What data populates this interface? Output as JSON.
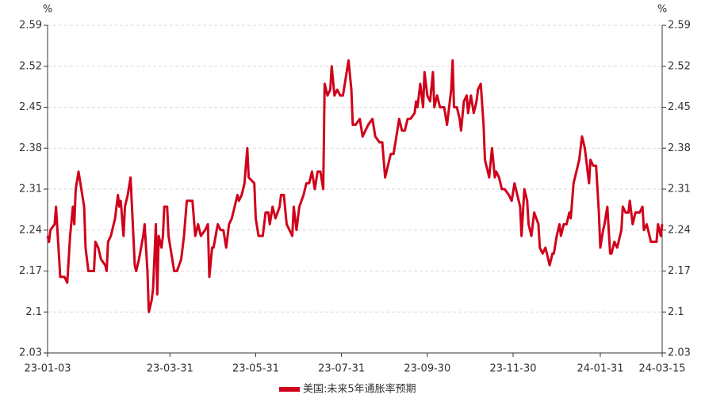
{
  "chart_data": {
    "type": "line",
    "y_unit": "%",
    "y2_unit": "%",
    "x": [
      "2023-01-03",
      "2023-01-04",
      "2023-01-05",
      "2023-01-08",
      "2023-01-09",
      "2023-01-10",
      "2023-01-12",
      "2023-01-15",
      "2023-01-17",
      "2023-01-19",
      "2023-01-21",
      "2023-01-22",
      "2023-01-23",
      "2023-01-25",
      "2023-01-27",
      "2023-01-29",
      "2023-01-30",
      "2023-01-31",
      "2023-02-01",
      "2023-02-05",
      "2023-02-06",
      "2023-02-08",
      "2023-02-10",
      "2023-02-13",
      "2023-02-14",
      "2023-02-15",
      "2023-02-17",
      "2023-02-20",
      "2023-02-22",
      "2023-02-23",
      "2023-02-24",
      "2023-02-26",
      "2023-02-27",
      "2023-03-01",
      "2023-03-03",
      "2023-03-04",
      "2023-03-06",
      "2023-03-07",
      "2023-03-09",
      "2023-03-12",
      "2023-03-13",
      "2023-03-15",
      "2023-03-16",
      "2023-03-18",
      "2023-03-19",
      "2023-03-21",
      "2023-03-22",
      "2023-03-23",
      "2023-03-25",
      "2023-03-26",
      "2023-03-27",
      "2023-03-29",
      "2023-03-30",
      "2023-04-01",
      "2023-04-03",
      "2023-04-05",
      "2023-04-08",
      "2023-04-10",
      "2023-04-12",
      "2023-04-16",
      "2023-04-18",
      "2023-04-20",
      "2023-04-22",
      "2023-04-25",
      "2023-04-27",
      "2023-04-28",
      "2023-04-30",
      "2023-05-01",
      "2023-05-04",
      "2023-05-06",
      "2023-05-08",
      "2023-05-10",
      "2023-05-12",
      "2023-05-14",
      "2023-05-16",
      "2023-05-18",
      "2023-05-19",
      "2023-05-21",
      "2023-05-23",
      "2023-05-25",
      "2023-05-26",
      "2023-05-30",
      "2023-05-31",
      "2023-06-02",
      "2023-06-05",
      "2023-06-07",
      "2023-06-09",
      "2023-06-10",
      "2023-06-12",
      "2023-06-14",
      "2023-06-17",
      "2023-06-18",
      "2023-06-20",
      "2023-06-22",
      "2023-06-24",
      "2023-06-26",
      "2023-06-27",
      "2023-06-29",
      "2023-07-01",
      "2023-07-04",
      "2023-07-06",
      "2023-07-08",
      "2023-07-10",
      "2023-07-12",
      "2023-07-14",
      "2023-07-16",
      "2023-07-18",
      "2023-07-19",
      "2023-07-21",
      "2023-07-23",
      "2023-07-24",
      "2023-07-26",
      "2023-07-28",
      "2023-07-30",
      "2023-08-01",
      "2023-08-03",
      "2023-08-05",
      "2023-08-07",
      "2023-08-08",
      "2023-08-10",
      "2023-08-13",
      "2023-08-15",
      "2023-08-17",
      "2023-08-19",
      "2023-08-22",
      "2023-08-24",
      "2023-08-27",
      "2023-08-29",
      "2023-08-31",
      "2023-09-02",
      "2023-09-04",
      "2023-09-06",
      "2023-09-08",
      "2023-09-10",
      "2023-09-12",
      "2023-09-14",
      "2023-09-16",
      "2023-09-18",
      "2023-09-21",
      "2023-09-22",
      "2023-09-23",
      "2023-09-25",
      "2023-09-27",
      "2023-09-28",
      "2023-09-30",
      "2023-10-02",
      "2023-10-04",
      "2023-10-05",
      "2023-10-07",
      "2023-10-09",
      "2023-10-10",
      "2023-10-12",
      "2023-10-14",
      "2023-10-15",
      "2023-10-17",
      "2023-10-18",
      "2023-10-19",
      "2023-10-21",
      "2023-10-23",
      "2023-10-24",
      "2023-10-26",
      "2023-10-28",
      "2023-10-29",
      "2023-10-31",
      "2023-11-02",
      "2023-11-04",
      "2023-11-05",
      "2023-11-07",
      "2023-11-09",
      "2023-11-10",
      "2023-11-11",
      "2023-11-13",
      "2023-11-15",
      "2023-11-17",
      "2023-11-18",
      "2023-11-20",
      "2023-11-22",
      "2023-11-24",
      "2023-11-27",
      "2023-11-29",
      "2023-12-01",
      "2023-12-03",
      "2023-12-05",
      "2023-12-06",
      "2023-12-08",
      "2023-12-10",
      "2023-12-11",
      "2023-12-13",
      "2023-12-15",
      "2023-12-18",
      "2023-12-19",
      "2023-12-21",
      "2023-12-23",
      "2023-12-24",
      "2023-12-26",
      "2023-12-28",
      "2023-12-29",
      "2023-12-31",
      "2024-01-02",
      "2024-01-03",
      "2024-01-05",
      "2024-01-07",
      "2024-01-09",
      "2024-01-10",
      "2024-01-12",
      "2024-01-14",
      "2024-01-16",
      "2024-01-18",
      "2024-01-20",
      "2024-01-21",
      "2024-01-23",
      "2024-01-24",
      "2024-01-26",
      "2024-01-28",
      "2024-01-30",
      "2024-01-31",
      "2024-02-02",
      "2024-02-03",
      "2024-02-05",
      "2024-02-07",
      "2024-02-08",
      "2024-02-10",
      "2024-02-12",
      "2024-02-15",
      "2024-02-16",
      "2024-02-18",
      "2024-02-20",
      "2024-02-21",
      "2024-02-23",
      "2024-02-25",
      "2024-02-27",
      "2024-02-28",
      "2024-03-01",
      "2024-03-02",
      "2024-03-04",
      "2024-03-05",
      "2024-03-07",
      "2024-03-11",
      "2024-03-12",
      "2024-03-14",
      "2024-03-15"
    ],
    "series": [
      {
        "name": "美国:未来5年通胀率预期",
        "color": "#d0021b",
        "values": [
          2.23,
          2.22,
          2.24,
          2.25,
          2.28,
          2.24,
          2.16,
          2.16,
          2.15,
          2.23,
          2.28,
          2.25,
          2.31,
          2.34,
          2.31,
          2.28,
          2.21,
          2.19,
          2.17,
          2.17,
          2.22,
          2.21,
          2.19,
          2.18,
          2.17,
          2.22,
          2.23,
          2.26,
          2.3,
          2.28,
          2.29,
          2.23,
          2.28,
          2.3,
          2.33,
          2.28,
          2.18,
          2.17,
          2.19,
          2.23,
          2.25,
          2.17,
          2.1,
          2.12,
          2.14,
          2.25,
          2.13,
          2.23,
          2.21,
          2.23,
          2.28,
          2.28,
          2.23,
          2.2,
          2.17,
          2.17,
          2.19,
          2.23,
          2.29,
          2.29,
          2.23,
          2.25,
          2.23,
          2.24,
          2.25,
          2.16,
          2.21,
          2.21,
          2.25,
          2.24,
          2.24,
          2.21,
          2.25,
          2.26,
          2.28,
          2.3,
          2.29,
          2.3,
          2.32,
          2.38,
          2.33,
          2.32,
          2.26,
          2.23,
          2.23,
          2.27,
          2.27,
          2.25,
          2.28,
          2.26,
          2.28,
          2.3,
          2.3,
          2.25,
          2.24,
          2.23,
          2.28,
          2.24,
          2.28,
          2.3,
          2.32,
          2.32,
          2.34,
          2.31,
          2.34,
          2.34,
          2.31,
          2.49,
          2.47,
          2.48,
          2.52,
          2.47,
          2.48,
          2.47,
          2.47,
          2.5,
          2.53,
          2.48,
          2.42,
          2.42,
          2.43,
          2.4,
          2.41,
          2.42,
          2.43,
          2.4,
          2.39,
          2.39,
          2.33,
          2.35,
          2.37,
          2.37,
          2.4,
          2.43,
          2.41,
          2.41,
          2.43,
          2.43,
          2.44,
          2.46,
          2.45,
          2.49,
          2.45,
          2.51,
          2.47,
          2.46,
          2.51,
          2.45,
          2.47,
          2.45,
          2.45,
          2.45,
          2.42,
          2.44,
          2.48,
          2.53,
          2.45,
          2.45,
          2.43,
          2.41,
          2.46,
          2.47,
          2.44,
          2.47,
          2.44,
          2.46,
          2.48,
          2.49,
          2.42,
          2.36,
          2.35,
          2.33,
          2.38,
          2.33,
          2.34,
          2.33,
          2.31,
          2.31,
          2.3,
          2.29,
          2.32,
          2.3,
          2.28,
          2.23,
          2.31,
          2.29,
          2.25,
          2.23,
          2.27,
          2.25,
          2.21,
          2.2,
          2.21,
          2.2,
          2.18,
          2.2,
          2.2,
          2.23,
          2.25,
          2.23,
          2.25,
          2.25,
          2.27,
          2.26,
          2.32,
          2.34,
          2.36,
          2.4,
          2.38,
          2.36,
          2.32,
          2.36,
          2.35,
          2.35,
          2.27,
          2.21,
          2.24,
          2.25,
          2.28,
          2.2,
          2.2,
          2.22,
          2.21,
          2.24,
          2.28,
          2.27,
          2.27,
          2.29,
          2.25,
          2.27,
          2.27,
          2.27,
          2.28,
          2.24,
          2.25,
          2.24,
          2.22,
          2.22,
          2.25,
          2.23,
          2.25
        ]
      }
    ],
    "xlim": [
      "2023-01-03",
      "2024-03-15"
    ],
    "xticks": [
      {
        "value": "2023-01-03",
        "label": "23-01-03"
      },
      {
        "value": "2023-03-31",
        "label": "23-03-31"
      },
      {
        "value": "2023-05-31",
        "label": "23-05-31"
      },
      {
        "value": "2023-07-31",
        "label": "23-07-31"
      },
      {
        "value": "2023-09-30",
        "label": "23-09-30"
      },
      {
        "value": "2023-11-30",
        "label": "23-11-30"
      },
      {
        "value": "2024-01-31",
        "label": "24-01-31"
      },
      {
        "value": "2024-03-15",
        "label": "24-03-15"
      }
    ],
    "ylim": [
      2.03,
      2.59
    ],
    "yticks": [
      2.03,
      2.1,
      2.17,
      2.24,
      2.31,
      2.38,
      2.45,
      2.52,
      2.59
    ],
    "y2lim": [
      2.03,
      2.59
    ],
    "y2ticks": [
      2.03,
      2.1,
      2.17,
      2.24,
      2.31,
      2.38,
      2.45,
      2.52,
      2.59
    ],
    "grid": true,
    "legend": "bottom"
  }
}
